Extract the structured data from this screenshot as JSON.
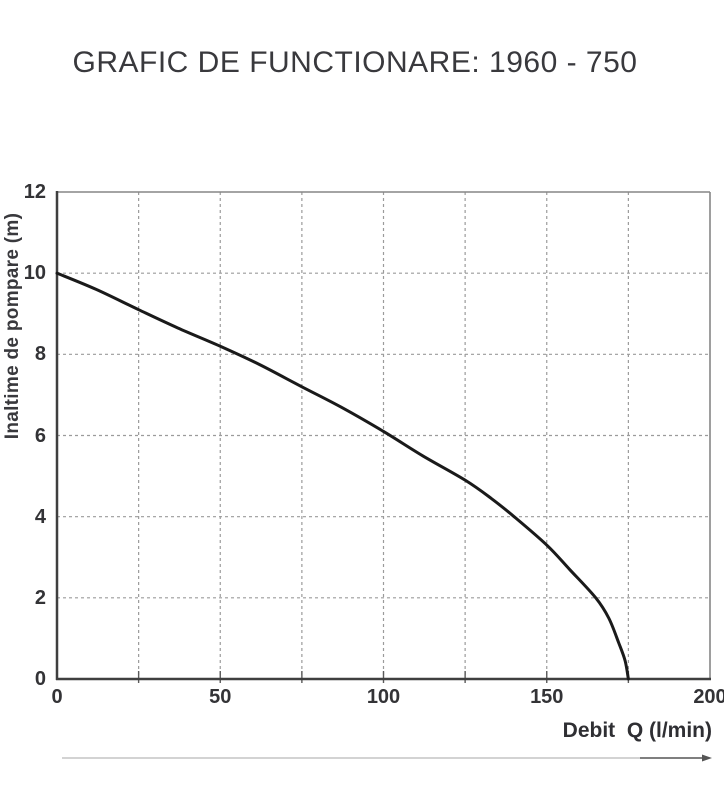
{
  "colors": {
    "curve": "#1a1a1a",
    "grid": "#9b9b9b",
    "axis_dark": "#3f3f3f",
    "frame_light": "#868686",
    "tick": "#5a5a5a",
    "text": "#39393d",
    "arrow_light": "#b9b9b9",
    "arrow_dark": "#555555"
  },
  "chart_data": {
    "type": "line",
    "title": "GRAFIC DE FUNCTIONARE: 1960 - 750",
    "xlabel": "Debit  Q (l/min)",
    "ylabel": "Inaltime de pompare (m)",
    "xlim": [
      0,
      200
    ],
    "ylim": [
      0,
      12
    ],
    "xticks": [
      0,
      50,
      100,
      150,
      200
    ],
    "yticks": [
      0,
      2,
      4,
      6,
      8,
      10,
      12
    ],
    "xgrid": [
      25,
      50,
      75,
      100,
      125,
      150,
      175
    ],
    "ygrid": [
      2,
      4,
      6,
      8,
      10
    ],
    "grid_style": "dashed",
    "legend": "none",
    "series": [
      {
        "name": "pump-performance-curve",
        "points": [
          [
            0,
            10.0
          ],
          [
            12,
            9.6
          ],
          [
            25,
            9.1
          ],
          [
            37,
            8.65
          ],
          [
            50,
            8.2
          ],
          [
            62,
            7.75
          ],
          [
            75,
            7.2
          ],
          [
            87,
            6.7
          ],
          [
            100,
            6.1
          ],
          [
            112,
            5.5
          ],
          [
            125,
            4.9
          ],
          [
            133,
            4.45
          ],
          [
            140,
            4.0
          ],
          [
            150,
            3.3
          ],
          [
            157,
            2.7
          ],
          [
            165,
            2.0
          ],
          [
            169,
            1.5
          ],
          [
            172,
            0.9
          ],
          [
            174,
            0.45
          ],
          [
            175,
            0.0
          ]
        ]
      }
    ]
  }
}
